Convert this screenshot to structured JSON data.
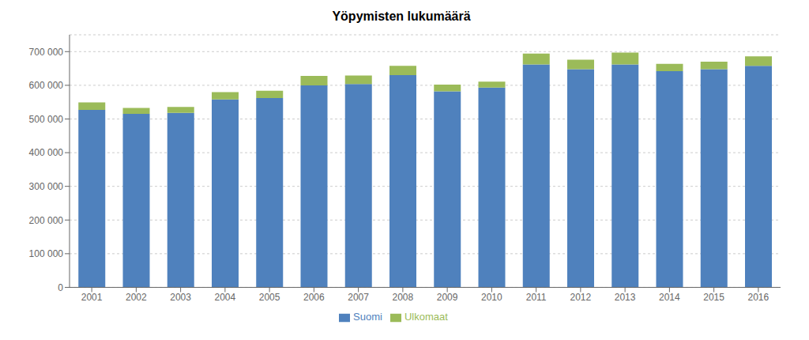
{
  "chart_data": {
    "type": "bar",
    "title": "Yöpymisten lukumäärä",
    "categories": [
      "2001",
      "2002",
      "2003",
      "2004",
      "2005",
      "2006",
      "2007",
      "2008",
      "2009",
      "2010",
      "2011",
      "2012",
      "2013",
      "2014",
      "2015",
      "2016"
    ],
    "series": [
      {
        "name": "Suomi",
        "color": "#4F81BD",
        "values": [
          527000,
          515000,
          518000,
          558000,
          562000,
          600000,
          604000,
          630000,
          582000,
          593000,
          662000,
          648000,
          662000,
          642000,
          648000,
          658000
        ]
      },
      {
        "name": "Ulkomaat",
        "color": "#9BBB59",
        "values": [
          22000,
          18000,
          18000,
          22000,
          22000,
          28000,
          25000,
          28000,
          20000,
          18000,
          32000,
          28000,
          35000,
          22000,
          22000,
          28000
        ]
      }
    ],
    "stacked": true,
    "ylim": [
      0,
      750000
    ],
    "yticks": [
      0,
      {
        "value": 100000,
        "label": "100 000"
      },
      {
        "value": 200000,
        "label": "200 000"
      },
      {
        "value": 300000,
        "label": "300 000"
      },
      {
        "value": 400000,
        "label": "400 000"
      },
      {
        "value": 500000,
        "label": "500 000"
      },
      {
        "value": 600000,
        "label": "600 000"
      },
      {
        "value": 700000,
        "label": "700 000"
      }
    ],
    "grid": true,
    "legend": "bottom"
  }
}
